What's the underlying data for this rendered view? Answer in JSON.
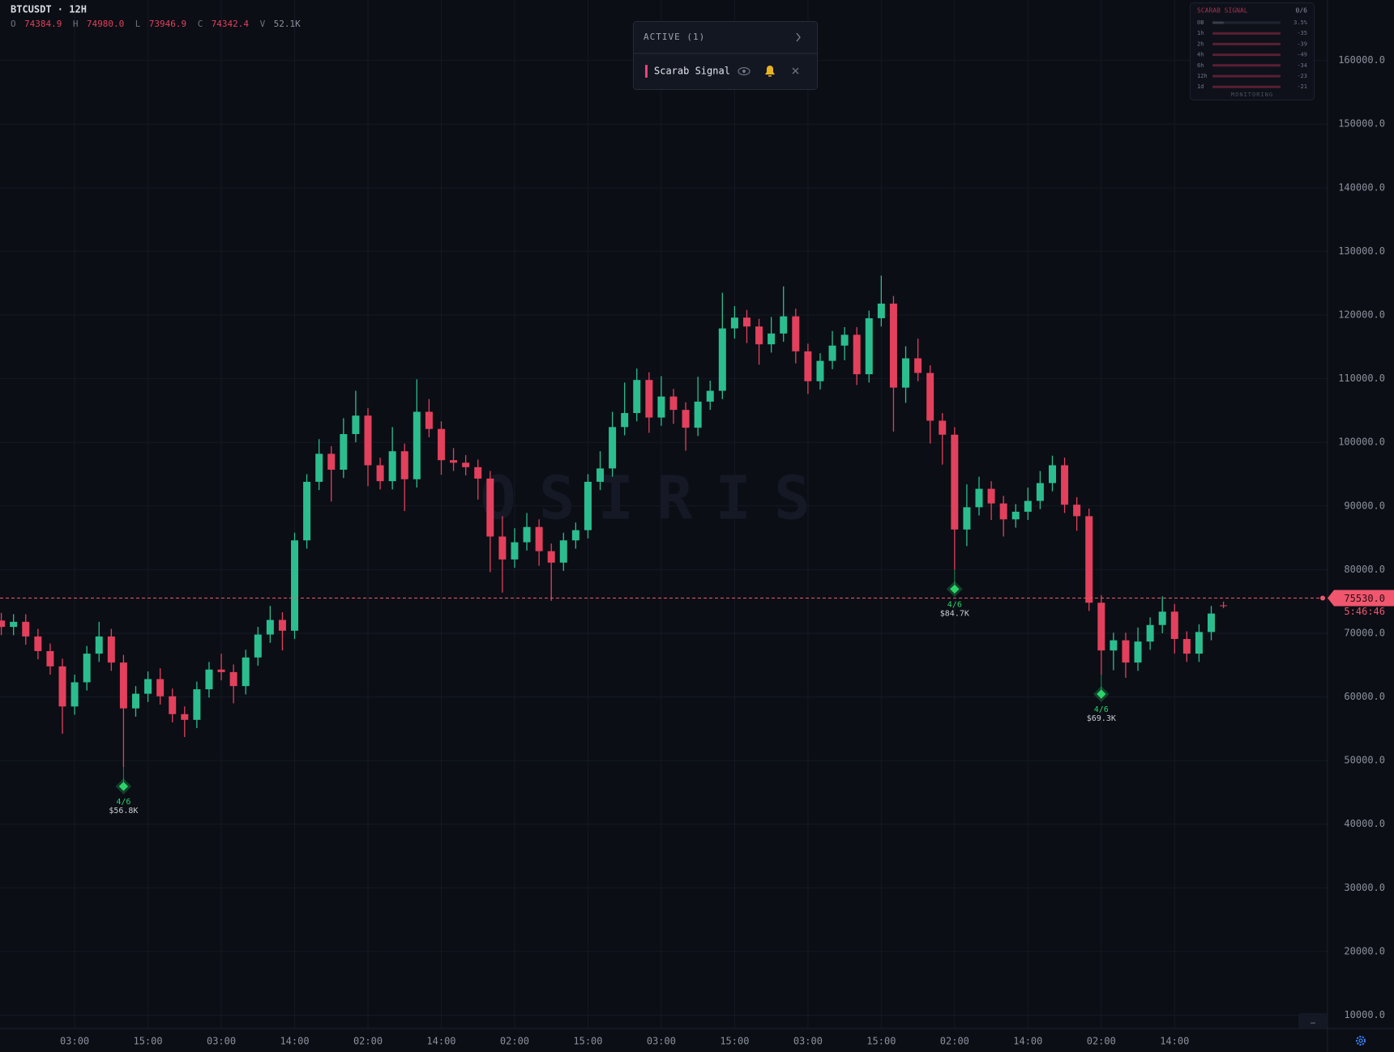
{
  "header": {
    "symbol": "BTCUSDT · 12H",
    "fields": [
      {
        "key": "O",
        "label": "74384.9"
      },
      {
        "key": "H",
        "label": "74980.0"
      },
      {
        "key": "L",
        "label": "73946.9"
      },
      {
        "key": "C",
        "label": "74342.4"
      },
      {
        "key": "V",
        "label": "52.1K"
      }
    ]
  },
  "active_panel": {
    "title": "ACTIVE (1)",
    "items": [
      "Scarab Signal"
    ]
  },
  "signal_panel": {
    "title": "SCARAB SIGNAL",
    "score": "0/6",
    "rows": [
      {
        "tf": "0B",
        "value": "3.5%"
      },
      {
        "tf": "1h",
        "value": "-35"
      },
      {
        "tf": "2h",
        "value": "-39"
      },
      {
        "tf": "4h",
        "value": "-49"
      },
      {
        "tf": "6h",
        "value": "-34"
      },
      {
        "tf": "12h",
        "value": "-23"
      },
      {
        "tf": "1d",
        "value": "-21"
      }
    ],
    "status": "MONITORING"
  },
  "watermark": "OSIRIS",
  "chart_data": {
    "type": "candlestick",
    "categories": [
      null,
      null,
      null,
      null,
      null,
      null,
      "03:00",
      null,
      null,
      null,
      null,
      null,
      "15:00",
      null,
      null,
      null,
      null,
      null,
      "03:00",
      null,
      null,
      null,
      null,
      null,
      "14:00",
      null,
      null,
      null,
      null,
      null,
      "02:00",
      null,
      null,
      null,
      null,
      null,
      "14:00",
      null,
      null,
      null,
      null,
      null,
      "02:00",
      null,
      null,
      null,
      null,
      null,
      "15:00",
      null,
      null,
      null,
      null,
      null,
      "03:00",
      null,
      null,
      null,
      null,
      null,
      "15:00",
      null,
      null,
      null,
      null,
      null,
      "03:00",
      null,
      null,
      null,
      null,
      null,
      "15:00",
      null,
      null,
      null,
      null,
      null,
      "02:00",
      null,
      null,
      null,
      null,
      null,
      "14:00",
      null,
      null,
      null,
      null,
      null,
      "02:00",
      null,
      null,
      null,
      null,
      null,
      "14:00",
      null,
      null,
      null,
      null
    ],
    "open": [
      72000,
      71000,
      71800,
      69500,
      67200,
      64800,
      58500,
      62300,
      66800,
      69500,
      65400,
      58200,
      60500,
      62800,
      60100,
      57300,
      56400,
      61200,
      64300,
      63900,
      61700,
      66200,
      69800,
      72100,
      70400,
      84600,
      93800,
      98200,
      95700,
      101300,
      104200,
      96400,
      93900,
      98600,
      94200,
      104800,
      102100,
      97200,
      96800,
      96100,
      94300,
      85200,
      81600,
      84300,
      86700,
      82900,
      81100,
      84600,
      86200,
      93800,
      95900,
      102400,
      104600,
      109800,
      103900,
      107200,
      105100,
      102300,
      106400,
      108100,
      117900,
      119600,
      118200,
      115400,
      117100,
      119800,
      114300,
      109600,
      112800,
      115200,
      116900,
      110700,
      119500,
      121800,
      108600,
      113200,
      110900,
      103400,
      101200,
      86300,
      89800,
      92700,
      90400,
      87900,
      89100,
      90800,
      93600,
      96400,
      90200,
      88400,
      74800,
      67300,
      68900,
      65400,
      68700,
      71300,
      73400,
      69100,
      66800,
      70200,
      74384.9
    ],
    "high": [
      73200,
      73000,
      73000,
      70700,
      68400,
      66000,
      63500,
      68000,
      71800,
      70700,
      66600,
      61700,
      64000,
      64500,
      61300,
      58500,
      62400,
      65500,
      66800,
      65100,
      67400,
      71000,
      74300,
      73300,
      85800,
      95000,
      100500,
      99400,
      103800,
      108100,
      105400,
      97600,
      102400,
      99800,
      109900,
      106800,
      103300,
      99100,
      98000,
      97300,
      95500,
      88400,
      86500,
      88900,
      87900,
      84100,
      85800,
      87400,
      95000,
      98600,
      104800,
      109400,
      111600,
      111000,
      110400,
      108400,
      106300,
      110300,
      109700,
      123500,
      121400,
      120800,
      119400,
      119700,
      124500,
      121000,
      115500,
      114000,
      117500,
      118100,
      118100,
      120700,
      126200,
      123000,
      115100,
      116300,
      112100,
      104600,
      102400,
      93400,
      94600,
      93900,
      91600,
      90300,
      92900,
      95500,
      97900,
      97600,
      91400,
      89600,
      76000,
      70100,
      70100,
      70900,
      72500,
      75800,
      74600,
      70300,
      71400,
      74300,
      74980
    ],
    "low": [
      69700,
      69700,
      68200,
      65900,
      63500,
      54200,
      57200,
      61000,
      65500,
      64100,
      49000,
      56900,
      59200,
      58800,
      56000,
      53700,
      55100,
      59900,
      62600,
      59000,
      60400,
      64900,
      68500,
      67300,
      69100,
      83300,
      92500,
      90700,
      94400,
      100000,
      93100,
      92600,
      92600,
      89200,
      92900,
      100800,
      94900,
      95500,
      94800,
      91000,
      79600,
      76400,
      80300,
      83000,
      80600,
      75100,
      79800,
      83300,
      84900,
      92500,
      94600,
      101100,
      103300,
      101500,
      102600,
      102900,
      98700,
      101000,
      105100,
      106800,
      116300,
      115600,
      112200,
      114100,
      115800,
      112400,
      107600,
      108300,
      111500,
      112900,
      109000,
      109400,
      118200,
      101700,
      106200,
      109600,
      99800,
      96500,
      80000,
      83700,
      88500,
      87800,
      85200,
      86600,
      87800,
      89500,
      92300,
      88900,
      86100,
      73500,
      63500,
      64200,
      63000,
      64100,
      67400,
      70000,
      66800,
      65500,
      65500,
      68900,
      73946.9
    ],
    "close": [
      71000,
      71800,
      69500,
      67200,
      64800,
      58500,
      62300,
      66800,
      69500,
      65400,
      58200,
      60500,
      62800,
      60100,
      57300,
      56400,
      61200,
      64300,
      63900,
      61700,
      66200,
      69800,
      72100,
      70400,
      84600,
      93800,
      98200,
      95700,
      101300,
      104200,
      96400,
      93900,
      98600,
      94200,
      104800,
      102100,
      97200,
      96800,
      96100,
      94300,
      85200,
      81600,
      84300,
      86700,
      82900,
      81100,
      84600,
      86200,
      93800,
      95900,
      102400,
      104600,
      109800,
      103900,
      107200,
      105100,
      102300,
      106400,
      108100,
      117900,
      119600,
      118200,
      115400,
      117100,
      119800,
      114300,
      109600,
      112800,
      115200,
      116900,
      110700,
      119500,
      121800,
      108600,
      113200,
      110900,
      103400,
      101200,
      86300,
      89800,
      92700,
      90400,
      87900,
      89100,
      90800,
      93600,
      96400,
      90200,
      88400,
      74800,
      67300,
      68900,
      65400,
      68700,
      71300,
      73400,
      69100,
      66800,
      70200,
      73100,
      74342.4
    ],
    "up_color": "#2bbd8e",
    "down_color": "#e2405c",
    "ylim": [
      7900,
      169500
    ],
    "yticks": [
      {
        "value": 10000,
        "label": "10000.0"
      },
      {
        "value": 20000,
        "label": "20000.0"
      },
      {
        "value": 30000,
        "label": "30000.0"
      },
      {
        "value": 40000,
        "label": "40000.0"
      },
      {
        "value": 50000,
        "label": "50000.0"
      },
      {
        "value": 60000,
        "label": "60000.0"
      },
      {
        "value": 70000,
        "label": "70000.0"
      },
      {
        "value": 80000,
        "label": "80000.0"
      },
      {
        "value": 90000,
        "label": "90000.0"
      },
      {
        "value": 100000,
        "label": "100000.0"
      },
      {
        "value": 110000,
        "label": "110000.0"
      },
      {
        "value": 120000,
        "label": "120000.0"
      },
      {
        "value": 130000,
        "label": "130000.0"
      },
      {
        "value": 140000,
        "label": "140000.0"
      },
      {
        "value": 150000,
        "label": "150000.0"
      },
      {
        "value": 160000,
        "label": "160000.0"
      }
    ],
    "grid": true,
    "price_line": {
      "value": 75530,
      "label": "75530.0",
      "countdown": "5:46:46",
      "color": "#f0566e"
    },
    "signals": [
      {
        "index": 10,
        "score": "4/6",
        "price": "$56.8K"
      },
      {
        "index": 78,
        "score": "4/6",
        "price": "$84.7K"
      },
      {
        "index": 90,
        "score": "4/6",
        "price": "$69.3K"
      }
    ]
  }
}
